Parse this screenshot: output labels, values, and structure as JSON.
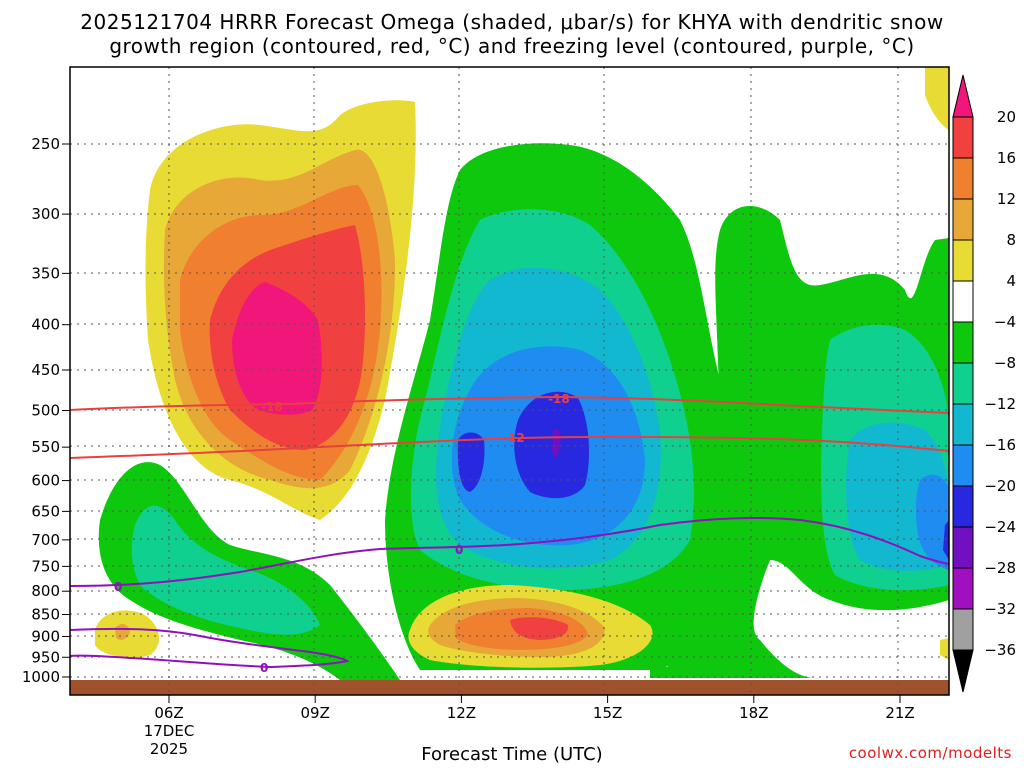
{
  "chart_data": {
    "type": "heatmap",
    "title": "2025121704 HRRR Forecast Omega (shaded, μbar/s) for KHYA with dendritic snow",
    "subtitle": "growth region (contoured, red, °C) and freezing level (contoured, purple, °C)",
    "xlabel": "Forecast Time (UTC)",
    "credit": "coolwx.com/modelts",
    "x_ticks": [
      "06Z",
      "09Z",
      "12Z",
      "15Z",
      "18Z",
      "21Z"
    ],
    "x_date": [
      "17DEC",
      "2025"
    ],
    "y_ticks": [
      "250",
      "300",
      "350",
      "400",
      "450",
      "500",
      "550",
      "600",
      "650",
      "700",
      "750",
      "800",
      "850",
      "900",
      "950",
      "1000"
    ],
    "colorbar": {
      "levels": [
        "20",
        "16",
        "12",
        "8",
        "4",
        "−4",
        "−8",
        "−12",
        "−16",
        "−20",
        "−24",
        "−28",
        "−32",
        "−36"
      ],
      "colors": [
        "#f0167a",
        "#f04040",
        "#f08030",
        "#e8a838",
        "#e8dc34",
        "#ffffff",
        "#0ec80e",
        "#10d090",
        "#12b8d0",
        "#1e8cf0",
        "#2828e0",
        "#7010c0",
        "#a010c0",
        "#a0a0a0",
        "#000000"
      ]
    },
    "contours": [
      {
        "label": "-18",
        "kind": "dendritic snow growth region",
        "color": "#e84040"
      },
      {
        "label": "-12",
        "kind": "dendritic snow growth region",
        "color": "#e84040"
      },
      {
        "label": "0",
        "kind": "freezing level",
        "color": "#9010c0"
      }
    ],
    "ground_color": "#a0522d"
  }
}
